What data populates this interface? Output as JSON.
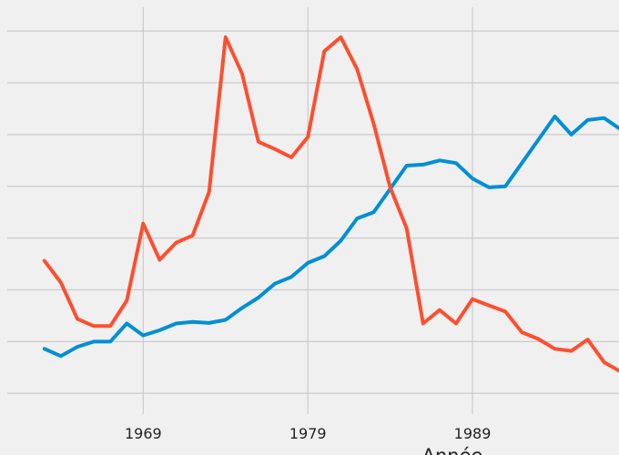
{
  "chart_data": {
    "type": "line",
    "x_label": "Année",
    "x": [
      1963,
      1964,
      1965,
      1966,
      1967,
      1968,
      1969,
      1970,
      1971,
      1972,
      1973,
      1974,
      1975,
      1976,
      1977,
      1978,
      1979,
      1980,
      1981,
      1982,
      1983,
      1984,
      1985,
      1986,
      1987,
      1988,
      1989,
      1990,
      1991,
      1992,
      1993,
      1994,
      1995,
      1996,
      1997,
      1998
    ],
    "series": [
      {
        "color": "#008fd5",
        "values": [
          0.86,
          0.72,
          0.9,
          1.0,
          1.0,
          1.35,
          1.12,
          1.22,
          1.35,
          1.38,
          1.36,
          1.42,
          1.65,
          1.85,
          2.12,
          2.25,
          2.52,
          2.65,
          2.95,
          3.38,
          3.5,
          3.95,
          4.4,
          4.42,
          4.5,
          4.45,
          4.15,
          3.98,
          4.0,
          4.45,
          4.9,
          5.35,
          5.0,
          5.28,
          5.32,
          5.1
        ]
      },
      {
        "color": "#fc4f30",
        "values": [
          2.56,
          2.14,
          1.44,
          1.3,
          1.3,
          1.79,
          3.28,
          2.58,
          2.91,
          3.05,
          3.89,
          6.88,
          6.18,
          4.86,
          4.72,
          4.56,
          4.95,
          6.61,
          6.88,
          6.26,
          5.21,
          3.98,
          3.19,
          1.35,
          1.61,
          1.35,
          1.82,
          1.7,
          1.58,
          1.18,
          1.05,
          0.86,
          0.82,
          1.04,
          0.6,
          0.42
        ]
      }
    ],
    "xlim": [
      1960.3,
      1997.9
    ],
    "xticks": [
      1969,
      1979,
      1989,
      1999
    ],
    "ylim": [
      -0.4,
      7.6
    ],
    "yticks": [
      0,
      1,
      2,
      3,
      4,
      5,
      6,
      7
    ],
    "grid": true
  }
}
